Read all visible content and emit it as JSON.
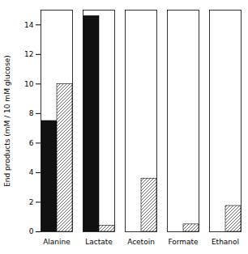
{
  "chart_data": {
    "type": "bar",
    "categories": [
      "Alanine",
      "Lactate",
      "Acetoin",
      "Formate",
      "Ethanol"
    ],
    "series": [
      {
        "color": "#111111",
        "values": [
          7.5,
          14.6,
          0,
          0,
          0
        ]
      },
      {
        "color": "#ffffff",
        "values": [
          10.0,
          0.4,
          3.6,
          0.5,
          1.75
        ]
      }
    ],
    "ylabel": "End products (mM / 10 mM glucose)",
    "ylim": [
      0,
      15
    ],
    "yticks": [
      0,
      2,
      4,
      6,
      8,
      10,
      12,
      14
    ]
  }
}
